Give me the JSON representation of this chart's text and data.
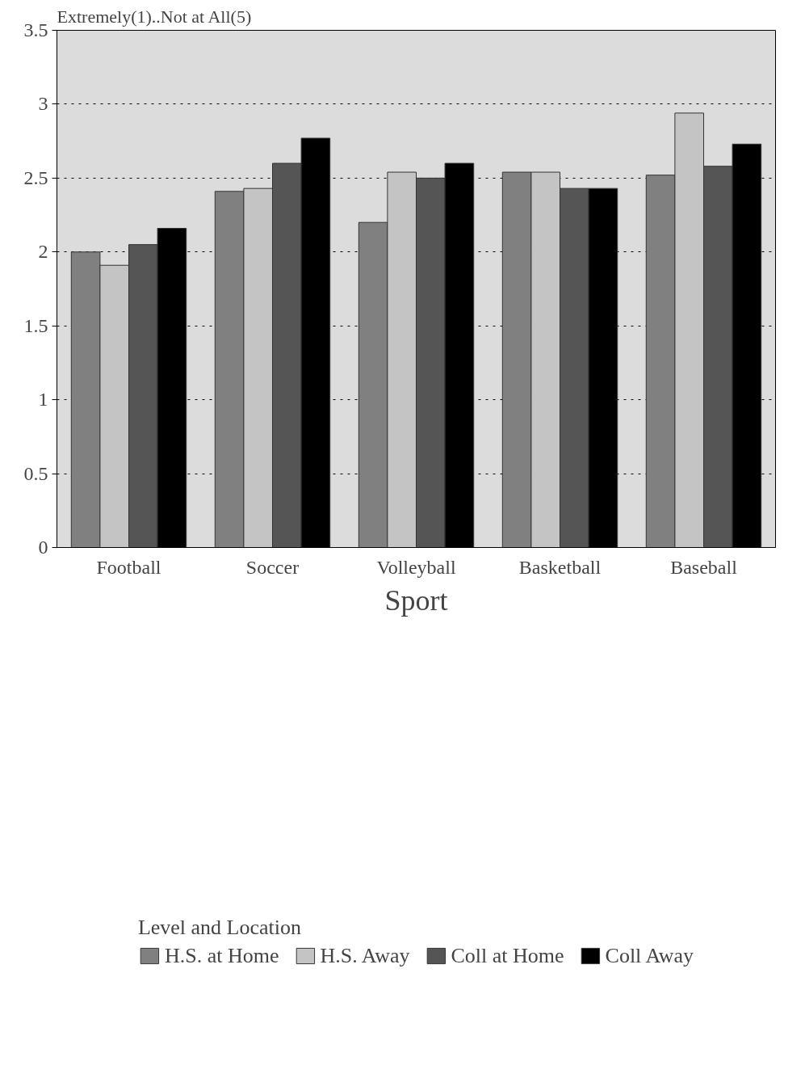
{
  "chart_data": {
    "type": "bar",
    "ylabel": "Extremely(1)..Not at All(5)",
    "xlabel": "Sport",
    "legend_title": "Level and Location",
    "categories": [
      "Football",
      "Soccer",
      "Volleyball",
      "Basketball",
      "Baseball"
    ],
    "series": [
      {
        "name": "H.S. at Home",
        "color": "#808080",
        "values": [
          2.0,
          2.41,
          2.2,
          2.54,
          2.52
        ]
      },
      {
        "name": "H.S. Away",
        "color": "#c4c4c4",
        "values": [
          1.91,
          2.43,
          2.54,
          2.54,
          2.94
        ]
      },
      {
        "name": "Coll at Home",
        "color": "#555555",
        "values": [
          2.05,
          2.6,
          2.5,
          2.43,
          2.58
        ]
      },
      {
        "name": "Coll Away",
        "color": "#000000",
        "values": [
          2.16,
          2.77,
          2.6,
          2.43,
          2.73
        ]
      }
    ],
    "ylim": [
      0,
      3.5
    ],
    "yticks": [
      0,
      0.5,
      1,
      1.5,
      2,
      2.5,
      3,
      3.5
    ],
    "grid": "y",
    "legend": "bottom"
  }
}
